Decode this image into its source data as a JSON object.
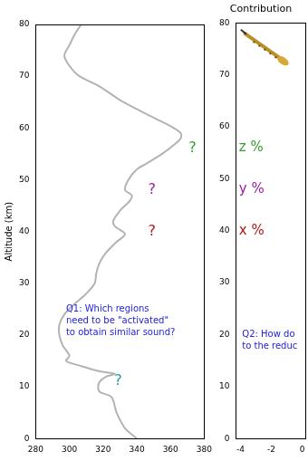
{
  "chart_data": [
    {
      "type": "line",
      "y_label": "Altitude (km)",
      "series": [
        {
          "color": "#b3b3b3",
          "x": [
            340,
            333,
            328,
            325,
            318,
            317,
            318,
            322,
            327,
            318,
            307,
            298,
            300,
            296,
            294,
            294,
            297,
            303,
            310,
            315,
            316,
            318,
            322,
            328,
            333,
            327,
            326,
            330,
            336,
            337,
            333,
            335,
            340,
            345,
            355,
            363,
            366,
            366,
            362,
            350,
            332,
            318,
            306,
            300,
            297,
            300,
            303,
            307
          ],
          "y": [
            0,
            2,
            5,
            8,
            9,
            10,
            11,
            12,
            12.5,
            13,
            14,
            15,
            16,
            18,
            20,
            22,
            24,
            26,
            28,
            30,
            32,
            34,
            36,
            38,
            39.5,
            41,
            42,
            44,
            46,
            47,
            48,
            50,
            52,
            53,
            55,
            57,
            58,
            59,
            60,
            62,
            65,
            68,
            70,
            72,
            74,
            76,
            78,
            80
          ]
        }
      ],
      "xlim": [
        280,
        380
      ],
      "xticks": [
        280,
        300,
        320,
        340,
        360,
        380
      ],
      "ylim": [
        0,
        80
      ],
      "yticks": [
        0,
        10,
        20,
        30,
        40,
        50,
        60,
        70,
        80
      ],
      "grid": false,
      "annotations": [
        {
          "text": "?",
          "x": 373,
          "y": 56,
          "color": "#33a02c"
        },
        {
          "text": "?",
          "x": 349,
          "y": 48,
          "color": "#a020a0"
        },
        {
          "text": "?",
          "x": 349,
          "y": 40,
          "color": "#b01818"
        },
        {
          "text": "?",
          "x": 329,
          "y": 11,
          "color": "#20a0a0"
        },
        {
          "text": [
            "Q1: Which regions",
            "need to be \"activated\"",
            "to obtain similar sound?"
          ],
          "x": 298,
          "y": 25,
          "color": "#2222dd"
        }
      ]
    },
    {
      "type": "scatter",
      "title": "Contribution",
      "xlim": [
        -4.3,
        0.2
      ],
      "xticks": [
        -4,
        -2,
        0
      ],
      "ylim": [
        0,
        80
      ],
      "yticks": [
        0,
        10,
        20,
        30,
        40,
        50,
        60,
        70,
        80
      ],
      "grid": false,
      "annotations": [
        {
          "text": "z %",
          "x": -4.1,
          "y": 56,
          "color": "#33a02c"
        },
        {
          "text": "y %",
          "x": -4.1,
          "y": 48,
          "color": "#a020a0"
        },
        {
          "text": "x %",
          "x": -4.1,
          "y": 40,
          "color": "#b01818"
        },
        {
          "text": [
            "Q2: How do",
            "to the reduc"
          ],
          "x": -3.9,
          "y": 20,
          "color": "#2222dd"
        }
      ]
    }
  ]
}
